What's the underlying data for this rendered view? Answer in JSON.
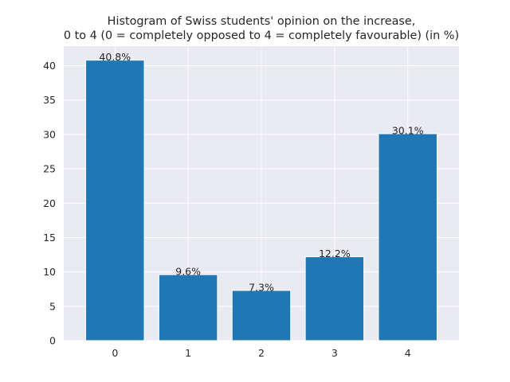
{
  "chart_data": {
    "type": "bar",
    "title": "Histogram of Swiss students' opinion on the increase,",
    "subtitle": "0 to 4 (0 = completely opposed to 4 = completely favourable) (in %)",
    "categories": [
      "0",
      "1",
      "2",
      "3",
      "4"
    ],
    "values": [
      40.8,
      9.6,
      7.3,
      12.2,
      30.1
    ],
    "data_labels": [
      "40.8%",
      "9.6%",
      "7.3%",
      "12.2%",
      "30.1%"
    ],
    "xlabel": "",
    "ylabel": "",
    "ylim": [
      0,
      42.84
    ],
    "yticks": [
      0,
      5,
      10,
      15,
      20,
      25,
      30,
      35,
      40
    ],
    "grid": true,
    "legend": "none",
    "colors": {
      "bar": "#1f77b4",
      "plot_background": "#eaeaf2",
      "grid": "#ffffff",
      "text": "#262626"
    }
  }
}
